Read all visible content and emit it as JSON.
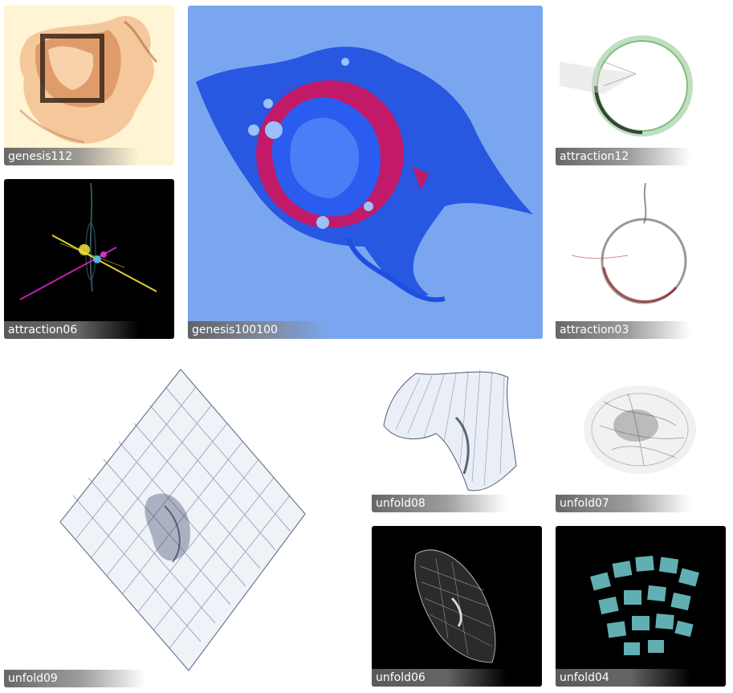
{
  "gallery": {
    "items": [
      {
        "title": "genesis112",
        "background": "#fff4d3",
        "accent": "#c9825a"
      },
      {
        "title": "attraction06",
        "background": "#000000",
        "accent": "#e7d232"
      },
      {
        "title": "genesis100100",
        "background": "#7aa6f0",
        "accent": "#1a3fd6",
        "accent2": "#c61c66"
      },
      {
        "title": "attraction12",
        "background": "#ffffff",
        "accent": "#4c9c4c"
      },
      {
        "title": "attraction03",
        "background": "#ffffff",
        "accent": "#8b1a1a"
      },
      {
        "title": "unfold09",
        "background": "#ffffff",
        "accent": "#1d2a44"
      },
      {
        "title": "unfold08",
        "background": "#ffffff",
        "accent": "#1d2a44"
      },
      {
        "title": "unfold07",
        "background": "#ffffff",
        "accent": "#222222"
      },
      {
        "title": "unfold06",
        "background": "#000000",
        "accent": "#ffffff"
      },
      {
        "title": "unfold04",
        "background": "#000000",
        "accent": "#6cc3c7"
      }
    ]
  }
}
